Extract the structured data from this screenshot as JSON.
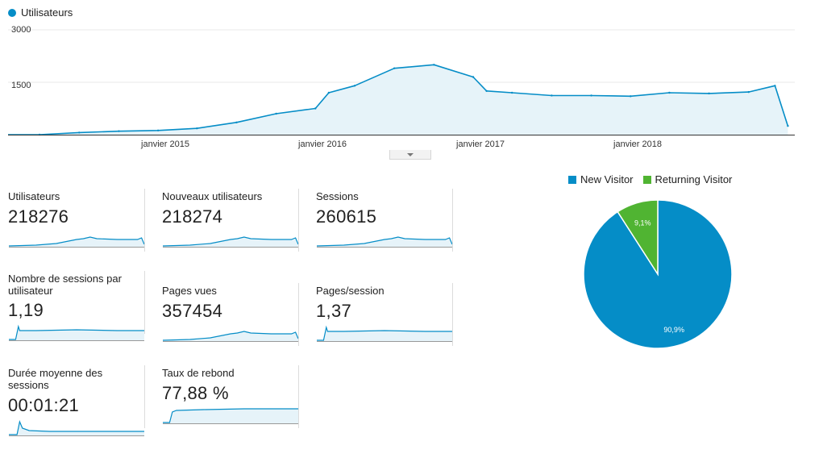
{
  "main_chart": {
    "legend_label": "Utilisateurs",
    "series_color": "#058dc7",
    "fill_color": "#e6f3f9",
    "y_ticks": [
      "3000",
      "1500"
    ],
    "x_ticks": [
      "janvier 2015",
      "janvier 2016",
      "janvier 2017",
      "janvier 2018"
    ]
  },
  "chart_data": [
    {
      "type": "area",
      "x": [
        "2014-03",
        "2014-06",
        "2014-09",
        "2014-12",
        "2015-03",
        "2015-06",
        "2015-09",
        "2015-12",
        "2016-01",
        "2016-03",
        "2016-06",
        "2016-09",
        "2016-12",
        "2017-01",
        "2017-03",
        "2017-06",
        "2017-09",
        "2017-12",
        "2018-03",
        "2018-06",
        "2018-09",
        "2018-11",
        "2018-12"
      ],
      "series": [
        {
          "name": "Utilisateurs",
          "values": [
            0,
            60,
            100,
            120,
            180,
            350,
            600,
            750,
            1200,
            1400,
            1900,
            2000,
            1650,
            1250,
            1200,
            1120,
            1120,
            1100,
            1200,
            1180,
            1220,
            1400,
            250
          ]
        }
      ],
      "ylim": [
        0,
        3000
      ]
    },
    {
      "type": "pie",
      "labels": [
        "New Visitor",
        "Returning Visitor"
      ],
      "values": [
        90.9,
        9.1
      ],
      "value_labels": [
        "90,9%",
        "9,1%"
      ],
      "colors": [
        "#058dc7",
        "#50b432"
      ]
    }
  ],
  "metrics": [
    {
      "label": "Utilisateurs",
      "value": "218276",
      "spark": "trend"
    },
    {
      "label": "Nouveaux utilisateurs",
      "value": "218274",
      "spark": "trend"
    },
    {
      "label": "Sessions",
      "value": "260615",
      "spark": "trend"
    },
    {
      "label": "Nombre de sessions par utilisateur",
      "value": "1,19",
      "spark": "flat"
    },
    {
      "label": "Pages vues",
      "value": "357454",
      "spark": "trend"
    },
    {
      "label": "Pages/session",
      "value": "1,37",
      "spark": "flat"
    },
    {
      "label": "Durée moyenne des sessions",
      "value": "00:01:21",
      "spark": "flat-noisy"
    },
    {
      "label": "Taux de rebond",
      "value": "77,88 %",
      "spark": "flat-high"
    }
  ],
  "pie": {
    "legend": [
      "New Visitor",
      "Returning Visitor"
    ]
  }
}
